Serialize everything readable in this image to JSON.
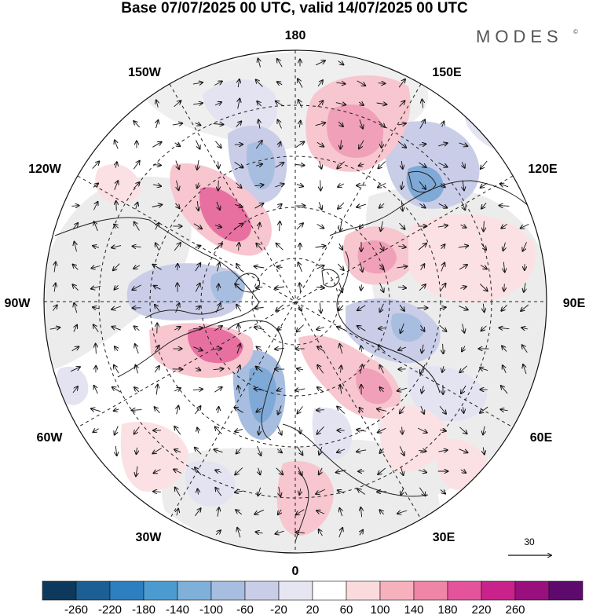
{
  "title": "Base 07/07/2025 00 UTC, valid 14/07/2025 00 UTC",
  "brand": "MODES",
  "brand_mark": "©",
  "longitude_labels": {
    "top": "180",
    "top_left": "150W",
    "top_right": "150E",
    "upper_left": "120W",
    "upper_right": "120E",
    "left": "90W",
    "right": "90E",
    "lower_left": "60W",
    "lower_right": "60E",
    "bottom_left": "30W",
    "bottom_right": "30E",
    "bottom": "0"
  },
  "reference_vector": {
    "label": "30"
  },
  "colorbar": {
    "colors": [
      "#0d3a5c",
      "#1b5f94",
      "#2d7fbf",
      "#4b9bd0",
      "#7fb0d9",
      "#a7bee0",
      "#c9cde8",
      "#e6e6f3",
      "#ffffff",
      "#fadadd",
      "#f6b1bd",
      "#ef85a7",
      "#e5539c",
      "#c9238b",
      "#9a0f7e",
      "#5e0a6d"
    ],
    "tick_labels": [
      "-260",
      "-220",
      "-180",
      "-140",
      "-100",
      "-60",
      "-20",
      "20",
      "60",
      "100",
      "140",
      "180",
      "220",
      "260"
    ]
  },
  "anomaly_colors": {
    "neutral": "#ececec",
    "blue_1": "#e3e3f2",
    "blue_2": "#c9cde8",
    "blue_3": "#a7bee0",
    "blue_4": "#7fa9d6",
    "red_1": "#fbe1e4",
    "red_2": "#f7c6cf",
    "red_3": "#f0a0b8",
    "red_4": "#e870a0"
  }
}
